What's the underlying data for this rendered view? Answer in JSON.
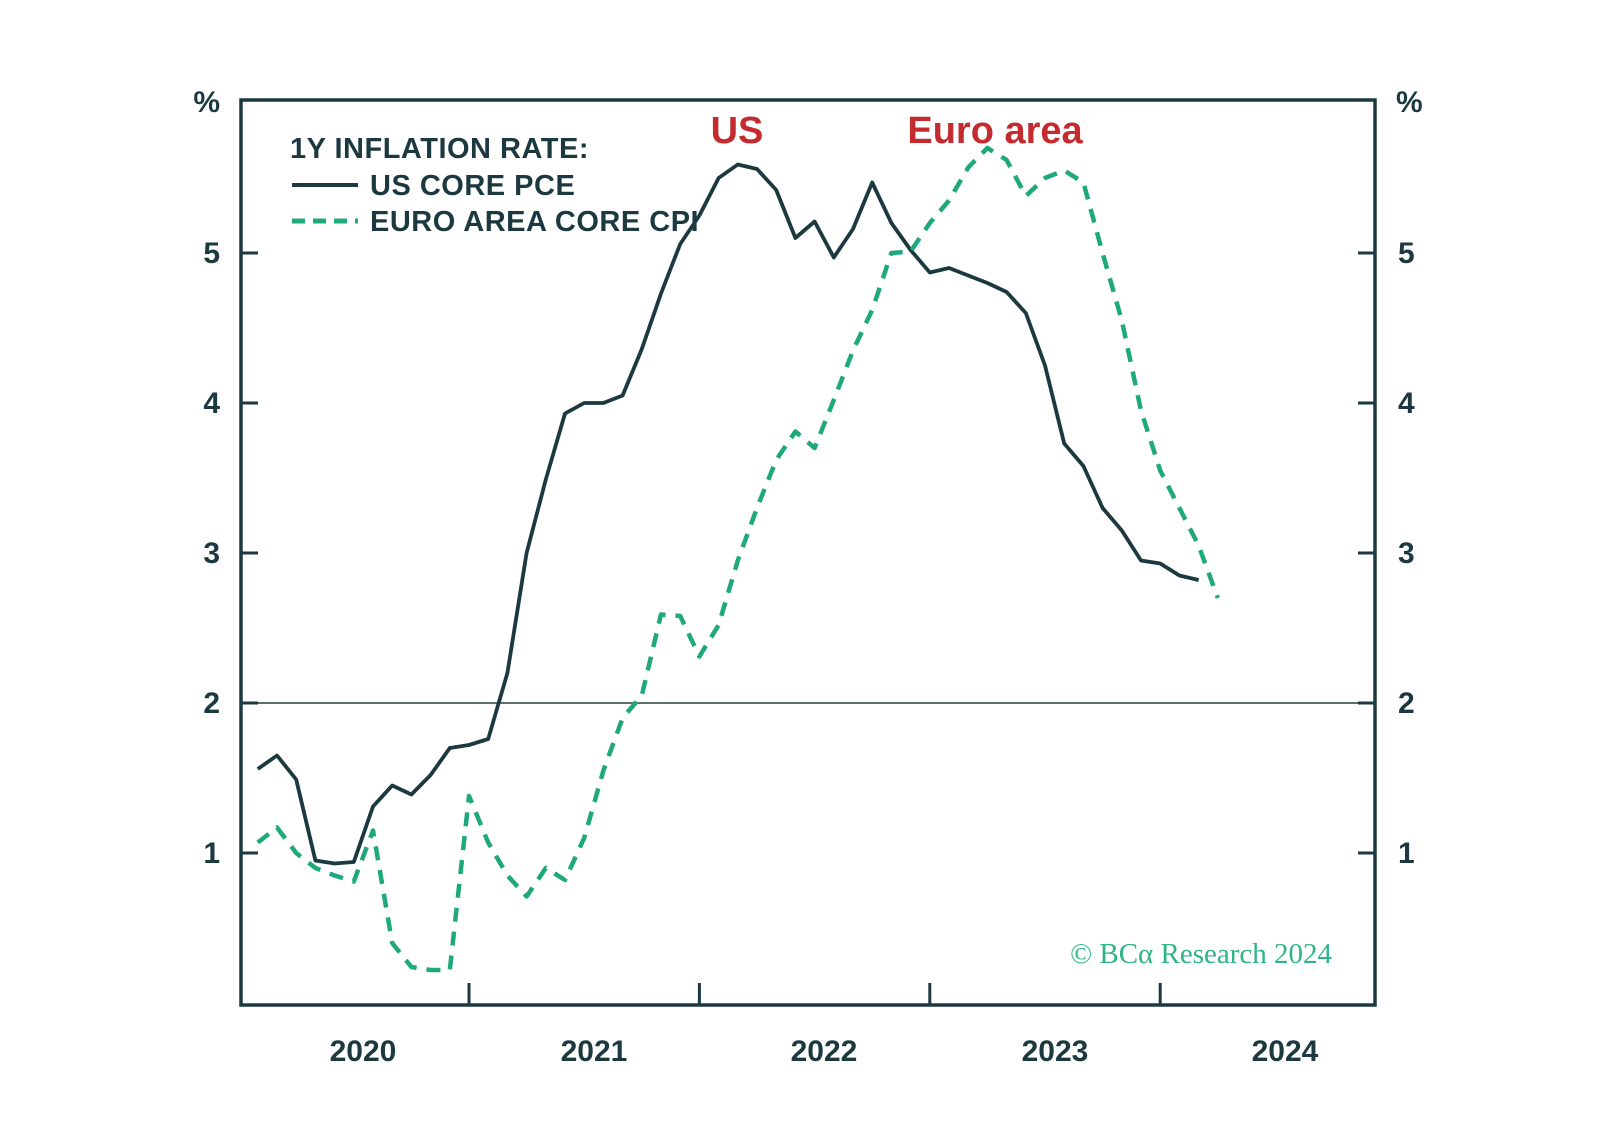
{
  "chart_data": {
    "type": "line",
    "title": "1Y INFLATION RATE:",
    "ylabel": "%",
    "yticks": [
      5,
      4,
      3,
      2,
      1
    ],
    "ylim": [
      0,
      6.03
    ],
    "grid": false,
    "reference_line_value": 2,
    "x_axis": {
      "start": "2020-01",
      "months_per_point": 1,
      "year_tick_months": [
        12,
        24,
        36,
        48
      ],
      "year_labels": [
        "2020",
        "2021",
        "2022",
        "2023",
        "2024"
      ]
    },
    "legend_position": "top-left",
    "colors": {
      "us_line": "#1c3940",
      "euro_line": "#1ea87c",
      "annotation_red": "#c32b2f",
      "axis": "#1c3940",
      "reference_line": "#5f6f6f",
      "attribution_green": "#2eb488"
    },
    "series": [
      {
        "name": "US CORE PCE",
        "style": "solid",
        "color": "#1c3940",
        "start_month_offset": 1,
        "start_label": "2020-02",
        "end_label": "2024-03",
        "values": [
          1.56,
          1.65,
          1.49,
          0.95,
          0.93,
          0.94,
          1.31,
          1.45,
          1.39,
          1.52,
          1.7,
          1.72,
          1.76,
          2.2,
          3.0,
          3.49,
          3.93,
          4.0,
          4.0,
          4.05,
          4.36,
          4.73,
          5.06,
          5.25,
          5.5,
          5.59,
          5.56,
          5.42,
          5.1,
          5.21,
          4.97,
          5.16,
          5.47,
          5.2,
          5.02,
          4.87,
          4.9,
          4.85,
          4.8,
          4.74,
          4.6,
          4.25,
          3.73,
          3.58,
          3.3,
          3.15,
          2.95,
          2.93,
          2.85,
          2.82
        ]
      },
      {
        "name": "EURO AREA CORE CPI",
        "style": "dashed",
        "color": "#1ea87c",
        "start_month_offset": 1,
        "start_label": "2020-02",
        "end_label": "2024-04",
        "values": [
          1.07,
          1.17,
          1.0,
          0.9,
          0.85,
          0.81,
          1.15,
          0.4,
          0.24,
          0.22,
          0.22,
          1.38,
          1.07,
          0.85,
          0.71,
          0.9,
          0.82,
          1.1,
          1.55,
          1.9,
          2.05,
          2.59,
          2.58,
          2.31,
          2.52,
          2.95,
          3.3,
          3.62,
          3.81,
          3.7,
          4.02,
          4.35,
          4.62,
          5.0,
          5.01,
          5.2,
          5.35,
          5.57,
          5.7,
          5.62,
          5.38,
          5.5,
          5.55,
          5.47,
          5.0,
          4.55,
          3.95,
          3.55,
          3.3,
          3.05,
          2.7
        ]
      }
    ],
    "annotations": [
      {
        "text": "US",
        "color": "#c32b2f"
      },
      {
        "text": "Euro area",
        "color": "#c32b2f"
      }
    ],
    "attribution": "© BCα Research 2024"
  }
}
